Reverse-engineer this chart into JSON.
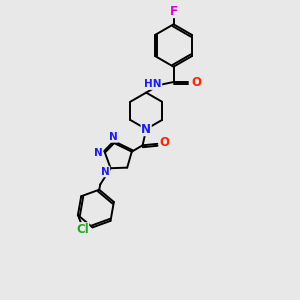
{
  "bg_color": "#e8e8e8",
  "fig_size": [
    3.0,
    3.0
  ],
  "dpi": 100,
  "bond_color": "#000000",
  "bond_width": 1.4,
  "atom_colors": {
    "C": "#000000",
    "N": "#1a1aff",
    "O": "#ff2200",
    "F": "#dd00dd",
    "Cl": "#22aa22",
    "NH": "#1a1aff"
  },
  "font_size": 8.5,
  "font_size_small": 7.5
}
